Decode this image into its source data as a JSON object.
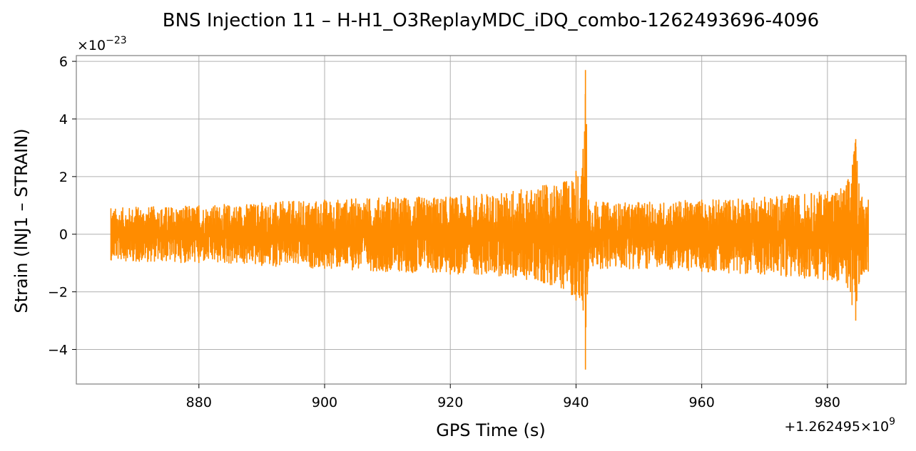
{
  "chart_data": {
    "type": "line",
    "title": "BNS Injection 11 – H-H1_O3ReplayMDC_iDQ_combo-1262493696-4096",
    "xlabel": "GPS Time (s)",
    "ylabel": "Strain (INJ1 – STRAIN)",
    "x_offset_label": "+1.262495×10",
    "x_offset_exponent": "9",
    "y_scale_label": "×10",
    "y_scale_exponent": "−23",
    "xlim": [
      860.5,
      992.5
    ],
    "ylim": [
      -5.2,
      6.2
    ],
    "x_ticks": [
      880,
      900,
      920,
      940,
      960,
      980
    ],
    "x_tick_labels": [
      "880",
      "900",
      "920",
      "940",
      "960",
      "980"
    ],
    "y_ticks": [
      -4,
      -2,
      0,
      2,
      4,
      6
    ],
    "y_tick_labels": [
      "−4",
      "−2",
      "0",
      "2",
      "4",
      "6"
    ],
    "grid": true,
    "series": [
      {
        "color": "#ff8c00",
        "x_range": [
          866.0,
          986.5
        ],
        "envelope_x": [
          866,
          870,
          880,
          890,
          900,
          910,
          920,
          925,
          930,
          935,
          938,
          940,
          941,
          941.5,
          942,
          945,
          950,
          960,
          970,
          980,
          983,
          984.5,
          985.5,
          986.5
        ],
        "envelope_max": [
          0.9,
          0.95,
          1.0,
          1.1,
          1.2,
          1.3,
          1.3,
          1.4,
          1.5,
          1.7,
          1.8,
          2.2,
          2.3,
          5.7,
          1.2,
          1.1,
          1.1,
          1.2,
          1.3,
          1.5,
          1.7,
          3.3,
          1.3,
          1.2
        ],
        "envelope_min": [
          -0.9,
          -0.95,
          -1.0,
          -1.1,
          -1.2,
          -1.3,
          -1.4,
          -1.4,
          -1.5,
          -1.7,
          -1.9,
          -2.3,
          -2.3,
          -4.7,
          -1.2,
          -1.2,
          -1.2,
          -1.3,
          -1.4,
          -1.6,
          -1.7,
          -3.0,
          -1.4,
          -1.3
        ]
      }
    ]
  }
}
